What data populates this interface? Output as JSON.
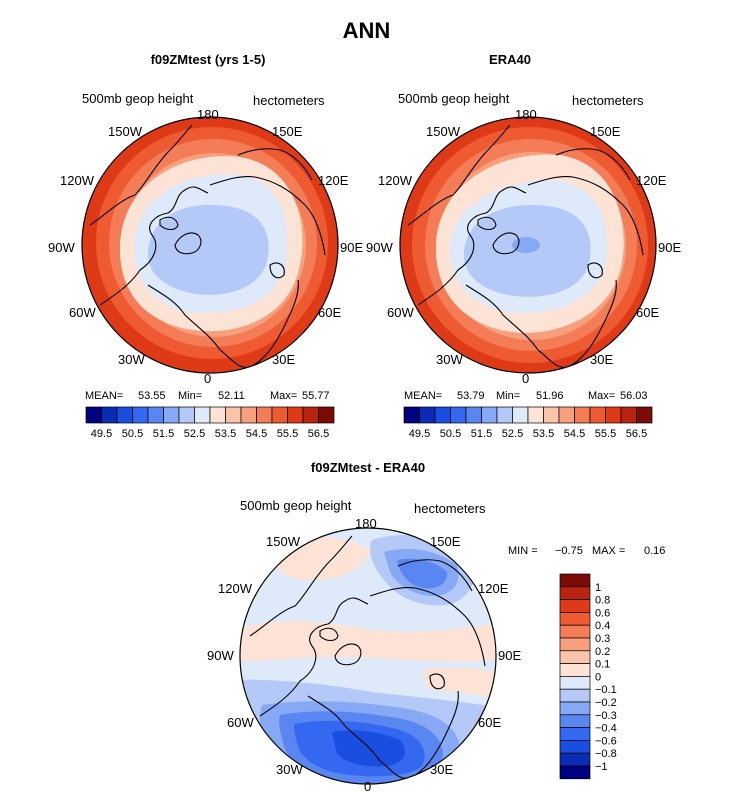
{
  "title": "ANN",
  "chart_data": [
    {
      "type": "polar-contour-map",
      "panel": "left",
      "title": "f09ZMtest (yrs 1-5)",
      "field_label": "500mb geop height",
      "units": "hectometers",
      "lon_labels": [
        "180",
        "150E",
        "120E",
        "90E",
        "60E",
        "30E",
        "0",
        "30W",
        "60W",
        "90W",
        "120W",
        "150W"
      ],
      "stats": {
        "mean_label": "MEAN=",
        "mean": "53.55",
        "min_label": "Min=",
        "min": "52.11",
        "max_label": "Max=",
        "max": "55.77"
      },
      "colorbar": {
        "ticks": [
          "49.5",
          "50.5",
          "51.5",
          "52.5",
          "53.5",
          "54.5",
          "55.5",
          "56.5"
        ],
        "colors": [
          "#000080",
          "#0a2cb4",
          "#1a4ee0",
          "#3468f0",
          "#5a86f2",
          "#86a8f5",
          "#b4c9f8",
          "#deeafa",
          "#fde3d6",
          "#fbc3aa",
          "#f8a07e",
          "#f47c56",
          "#ee5a32",
          "#de3a18",
          "#b82410",
          "#7c0a06"
        ]
      }
    },
    {
      "type": "polar-contour-map",
      "panel": "right",
      "title": "ERA40",
      "field_label": "500mb geop height",
      "units": "hectometers",
      "lon_labels": [
        "180",
        "150E",
        "120E",
        "90E",
        "60E",
        "30E",
        "0",
        "30W",
        "60W",
        "90W",
        "120W",
        "150W"
      ],
      "stats": {
        "mean_label": "MEAN=",
        "mean": "53.79",
        "min_label": "Min=",
        "min": "51.96",
        "max_label": "Max=",
        "max": "56.03"
      },
      "colorbar": {
        "ticks": [
          "49.5",
          "50.5",
          "51.5",
          "52.5",
          "53.5",
          "54.5",
          "55.5",
          "56.5"
        ],
        "colors": [
          "#000080",
          "#0a2cb4",
          "#1a4ee0",
          "#3468f0",
          "#5a86f2",
          "#86a8f5",
          "#b4c9f8",
          "#deeafa",
          "#fde3d6",
          "#fbc3aa",
          "#f8a07e",
          "#f47c56",
          "#ee5a32",
          "#de3a18",
          "#b82410",
          "#7c0a06"
        ]
      }
    },
    {
      "type": "polar-contour-map",
      "panel": "bottom",
      "title": "f09ZMtest - ERA40",
      "field_label": "500mb geop height",
      "units": "hectometers",
      "lon_labels": [
        "180",
        "150E",
        "120E",
        "90E",
        "60E",
        "30E",
        "0",
        "30W",
        "60W",
        "90W",
        "120W",
        "150W"
      ],
      "stats": {
        "min_label": "MIN =",
        "min": "−0.75",
        "max_label": "MAX =",
        "max": "0.16"
      },
      "colorbar": {
        "ticks": [
          "1",
          "0.8",
          "0.6",
          "0.4",
          "0.3",
          "0.2",
          "0.1",
          "0",
          "−0.1",
          "−0.2",
          "−0.3",
          "−0.4",
          "−0.6",
          "−0.8",
          "−1"
        ],
        "colors": [
          "#7c0a06",
          "#b82410",
          "#de3a18",
          "#ee5a32",
          "#f47c56",
          "#f8a07e",
          "#fbc3aa",
          "#fde3d6",
          "#deeafa",
          "#b4c9f8",
          "#86a8f5",
          "#5a86f2",
          "#3468f0",
          "#1a4ee0",
          "#0a2cb4",
          "#000080"
        ]
      }
    }
  ]
}
